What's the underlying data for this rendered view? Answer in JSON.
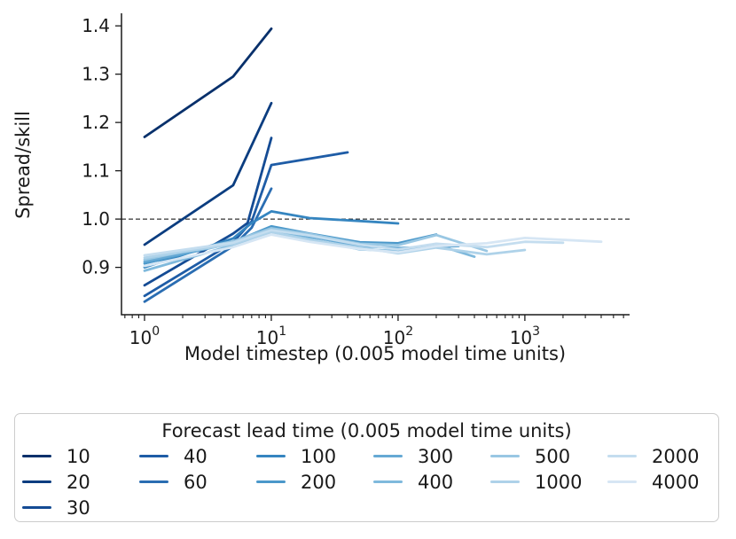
{
  "figure": {
    "background": "#ffffff",
    "text_color": "#1a1a1a",
    "axis_color": "#1a1a1a"
  },
  "chart_data": {
    "type": "line",
    "title": "",
    "xlabel": "Model timestep (0.005 model time units)",
    "ylabel": "Spread/skill",
    "x_scale": "log",
    "xlim": [
      0.658,
      6700
    ],
    "ylim": [
      0.802,
      1.426
    ],
    "x_ticks": [
      1,
      10,
      100,
      1000
    ],
    "y_ticks": [
      0.9,
      1.0,
      1.1,
      1.2,
      1.3,
      1.4
    ],
    "grid": false,
    "reference_line": {
      "y": 1.0,
      "style": "dashed",
      "color": "#000000"
    },
    "legend": {
      "title": "Forecast lead time (0.005 model time units)",
      "position": "below",
      "column_layout": [
        3,
        2,
        2,
        2,
        2,
        2
      ]
    },
    "series": [
      {
        "name": "10",
        "color": "#08306b",
        "points": [
          [
            1,
            1.17
          ],
          [
            5,
            1.295
          ],
          [
            10,
            1.394
          ]
        ]
      },
      {
        "name": "20",
        "color": "#0b3d80",
        "points": [
          [
            1,
            0.947
          ],
          [
            5,
            1.07
          ],
          [
            10,
            1.24
          ]
        ]
      },
      {
        "name": "30",
        "color": "#144b94",
        "points": [
          [
            1,
            0.863
          ],
          [
            5,
            0.97
          ],
          [
            6.5,
            0.992
          ],
          [
            10,
            1.168
          ]
        ]
      },
      {
        "name": "40",
        "color": "#1e5ca6",
        "points": [
          [
            1,
            0.841
          ],
          [
            5,
            0.952
          ],
          [
            7,
            0.995
          ],
          [
            10,
            1.112
          ],
          [
            40,
            1.138
          ]
        ]
      },
      {
        "name": "60",
        "color": "#2a6db2",
        "points": [
          [
            1,
            0.829
          ],
          [
            5,
            0.944
          ],
          [
            7,
            0.982
          ],
          [
            10,
            1.063
          ]
        ]
      },
      {
        "name": "100",
        "color": "#3585c0",
        "points": [
          [
            1,
            0.9
          ],
          [
            5,
            0.96
          ],
          [
            7,
            0.992
          ],
          [
            10,
            1.016
          ],
          [
            20,
            1.002
          ],
          [
            50,
            0.996
          ],
          [
            100,
            0.991
          ]
        ]
      },
      {
        "name": "200",
        "color": "#4b98ca",
        "points": [
          [
            1,
            0.908
          ],
          [
            5,
            0.952
          ],
          [
            10,
            0.985
          ],
          [
            20,
            0.97
          ],
          [
            50,
            0.952
          ],
          [
            100,
            0.95
          ],
          [
            200,
            0.968
          ]
        ]
      },
      {
        "name": "300",
        "color": "#66a9d4",
        "points": [
          [
            1,
            0.912
          ],
          [
            5,
            0.95
          ],
          [
            10,
            0.979
          ],
          [
            20,
            0.964
          ],
          [
            50,
            0.944
          ],
          [
            100,
            0.94
          ],
          [
            300,
            0.944
          ]
        ]
      },
      {
        "name": "400",
        "color": "#7fb9dc",
        "points": [
          [
            1,
            0.893
          ],
          [
            5,
            0.946
          ],
          [
            10,
            0.975
          ],
          [
            20,
            0.959
          ],
          [
            50,
            0.937
          ],
          [
            100,
            0.934
          ],
          [
            200,
            0.947
          ],
          [
            400,
            0.922
          ]
        ]
      },
      {
        "name": "500",
        "color": "#99c7e3",
        "points": [
          [
            1,
            0.916
          ],
          [
            5,
            0.954
          ],
          [
            10,
            0.981
          ],
          [
            20,
            0.969
          ],
          [
            50,
            0.949
          ],
          [
            100,
            0.946
          ],
          [
            200,
            0.967
          ],
          [
            500,
            0.934
          ]
        ]
      },
      {
        "name": "1000",
        "color": "#aed2e9",
        "points": [
          [
            1,
            0.92
          ],
          [
            5,
            0.948
          ],
          [
            10,
            0.973
          ],
          [
            20,
            0.957
          ],
          [
            50,
            0.941
          ],
          [
            100,
            0.929
          ],
          [
            200,
            0.941
          ],
          [
            500,
            0.927
          ],
          [
            1000,
            0.936
          ]
        ]
      },
      {
        "name": "2000",
        "color": "#c4ddef",
        "points": [
          [
            1,
            0.925
          ],
          [
            5,
            0.951
          ],
          [
            10,
            0.977
          ],
          [
            20,
            0.966
          ],
          [
            50,
            0.947
          ],
          [
            100,
            0.937
          ],
          [
            200,
            0.949
          ],
          [
            500,
            0.942
          ],
          [
            1000,
            0.953
          ],
          [
            2000,
            0.951
          ]
        ]
      },
      {
        "name": "4000",
        "color": "#d6e6f4",
        "points": [
          [
            1,
            0.903
          ],
          [
            5,
            0.942
          ],
          [
            10,
            0.968
          ],
          [
            20,
            0.953
          ],
          [
            50,
            0.938
          ],
          [
            100,
            0.931
          ],
          [
            200,
            0.944
          ],
          [
            500,
            0.95
          ],
          [
            1000,
            0.961
          ],
          [
            4000,
            0.953
          ]
        ]
      }
    ]
  }
}
